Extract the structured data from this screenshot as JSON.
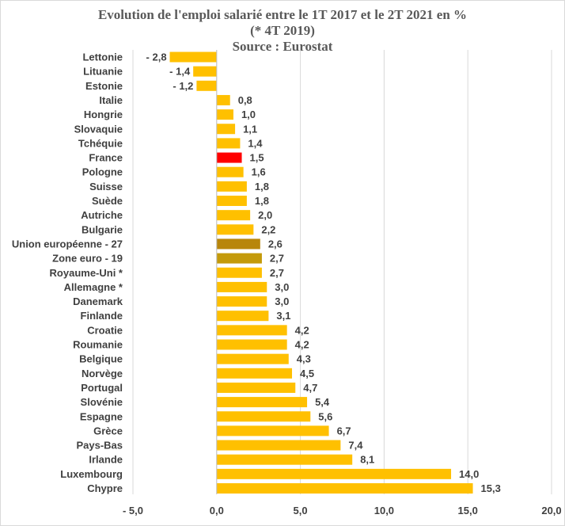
{
  "chart_data": {
    "type": "bar",
    "orientation": "horizontal",
    "title_lines": [
      "Evolution de l'emploi salarié entre le 1T 2017 et le 2T 2021 en %",
      "(* 4T 2019)",
      "Source : Eurostat"
    ],
    "xlim": [
      -5,
      20
    ],
    "xticks": [
      -5,
      0,
      5,
      10,
      15,
      20
    ],
    "xtick_labels": [
      "- 5,0",
      "0,0",
      "5,0",
      "10,0",
      "15,0",
      "20,0"
    ],
    "grid": "vertical",
    "categories": [
      "Lettonie",
      "Lituanie",
      "Estonie",
      "Italie",
      "Hongrie",
      "Slovaquie",
      "Tchéquie",
      "France",
      "Pologne",
      "Suisse",
      "Suède",
      "Autriche",
      "Bulgarie",
      "Union européenne - 27",
      "Zone euro - 19",
      "Royaume-Uni *",
      "Allemagne *",
      "Danemark",
      "Finlande",
      "Croatie",
      "Roumanie",
      "Belgique",
      "Norvège",
      "Portugal",
      "Slovénie",
      "Espagne",
      "Grèce",
      "Pays-Bas",
      "Irlande",
      "Luxembourg",
      "Chypre"
    ],
    "values": [
      -2.8,
      -1.4,
      -1.2,
      0.8,
      1.0,
      1.1,
      1.4,
      1.5,
      1.6,
      1.8,
      1.8,
      2.0,
      2.2,
      2.6,
      2.7,
      2.7,
      3.0,
      3.0,
      3.1,
      4.2,
      4.2,
      4.3,
      4.5,
      4.7,
      5.4,
      5.6,
      6.7,
      7.4,
      8.1,
      14.0,
      15.3
    ],
    "value_labels": [
      "- 2,8",
      "- 1,4",
      "- 1,2",
      "0,8",
      "1,0",
      "1,1",
      "1,4",
      "1,5",
      "1,6",
      "1,8",
      "1,8",
      "2,0",
      "2,2",
      "2,6",
      "2,7",
      "2,7",
      "3,0",
      "3,0",
      "3,1",
      "4,2",
      "4,2",
      "4,3",
      "4,5",
      "4,7",
      "5,4",
      "5,6",
      "6,7",
      "7,4",
      "8,1",
      "14,0",
      "15,3"
    ],
    "colors": {
      "default": "#FFC000",
      "highlight": {
        "France": "#FF0000",
        "Union européenne - 27": "#B8860B",
        "Zone euro - 19": "#C49A0A"
      }
    }
  }
}
